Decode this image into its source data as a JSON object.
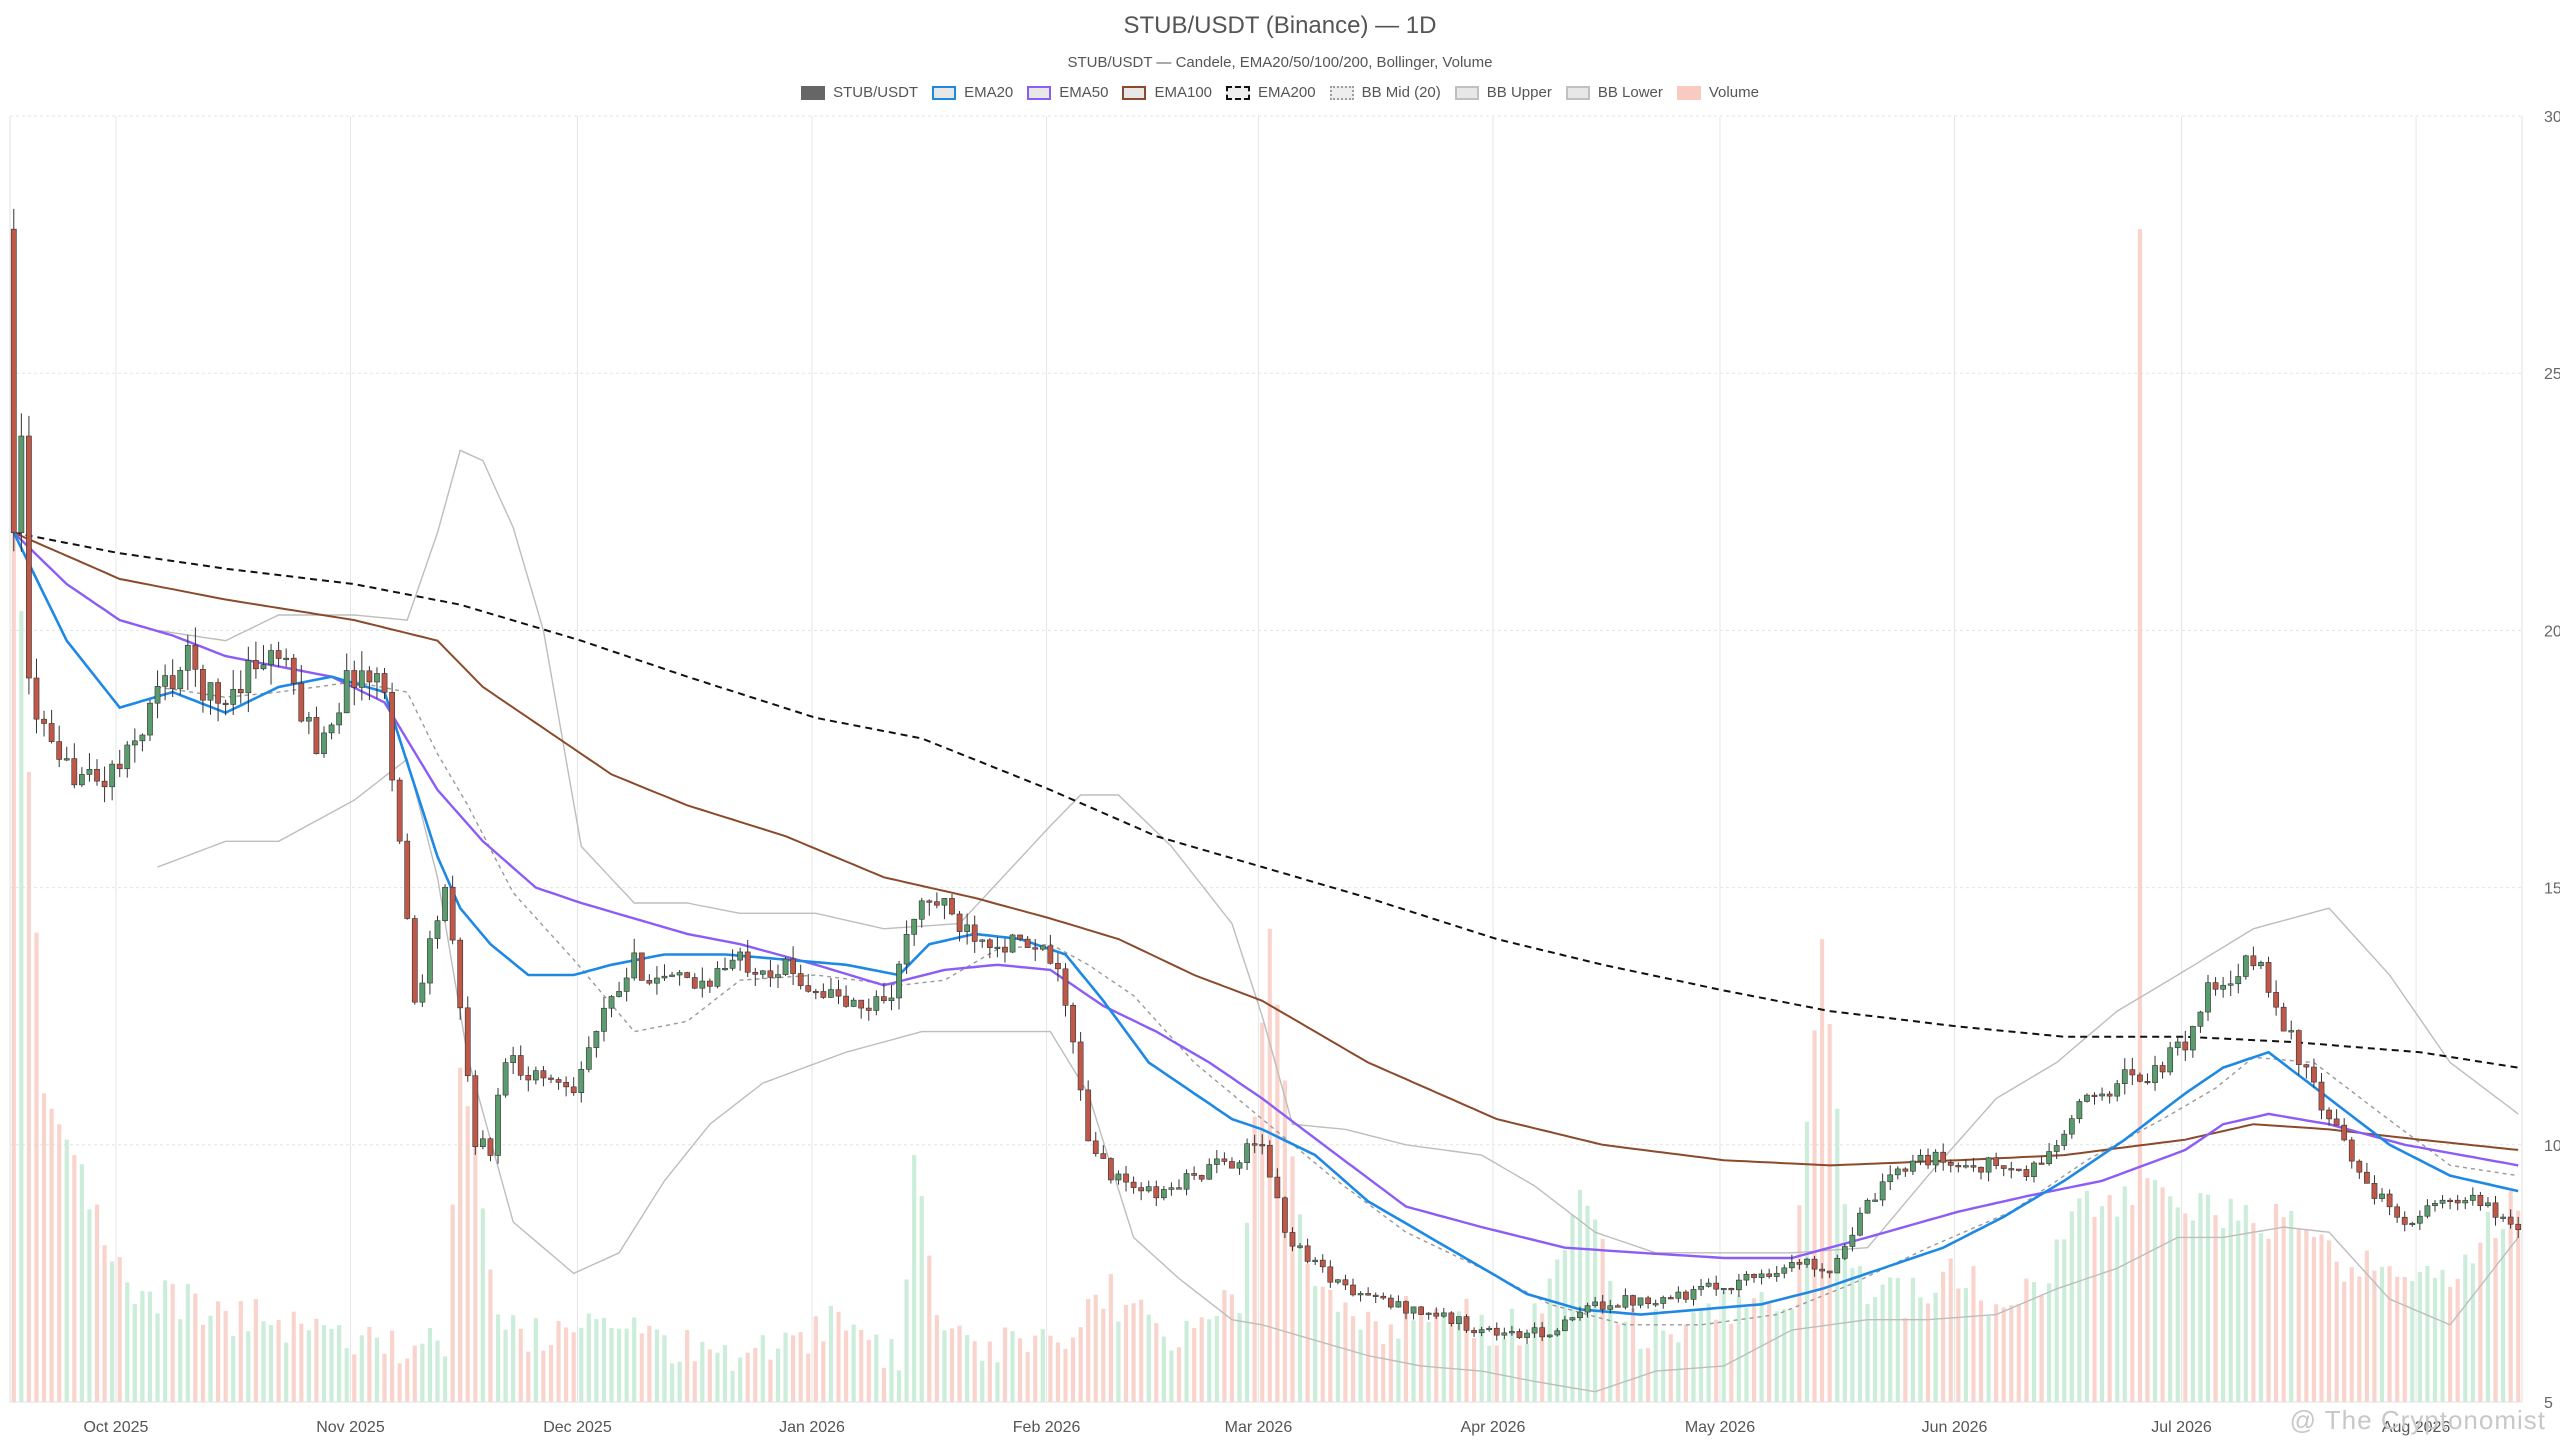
{
  "chart_data": {
    "type": "candlestick",
    "title": "STUB/USDT (Binance) — 1D",
    "subtitle": "STUB/USDT — Candele, EMA20/50/100/200, Bollinger, Volume",
    "watermark": "@ The Cryptonomist",
    "legend": [
      {
        "label": "STUB/USDT",
        "color": "#666666",
        "style": "solid-fill"
      },
      {
        "label": "EMA20",
        "color": "#1e88e5",
        "style": "line"
      },
      {
        "label": "EMA50",
        "color": "#8b5cf6",
        "style": "line"
      },
      {
        "label": "EMA100",
        "color": "#8b4a2b",
        "style": "line"
      },
      {
        "label": "EMA200",
        "color": "#111111",
        "style": "dashed"
      },
      {
        "label": "BB Mid (20)",
        "color": "#9e9e9e",
        "style": "dotted"
      },
      {
        "label": "BB Upper",
        "color": "#c0c0c0",
        "style": "line"
      },
      {
        "label": "BB Lower",
        "color": "#c0c0c0",
        "style": "line"
      },
      {
        "label": "Volume",
        "color": "#f6b8ab",
        "style": "fill"
      }
    ],
    "colors": {
      "up": "#5b9c6e",
      "down": "#c0584a",
      "vol_up": "#bfe8cf",
      "vol_down": "#f8c9c0"
    },
    "y_axis": {
      "position": "right",
      "min": 5,
      "max": 30,
      "ticks": [
        5,
        10,
        15,
        20,
        25,
        30
      ]
    },
    "x_axis": {
      "start": "2025-09-17",
      "end": "2026-08-14",
      "ticks": [
        {
          "label": "Oct 2025",
          "date": "2025-10-01"
        },
        {
          "label": "Nov 2025",
          "date": "2025-11-01"
        },
        {
          "label": "Dec 2025",
          "date": "2025-12-01"
        },
        {
          "label": "Jan 2026",
          "date": "2026-01-01"
        },
        {
          "label": "Feb 2026",
          "date": "2026-02-01"
        },
        {
          "label": "Mar 2026",
          "date": "2026-03-01"
        },
        {
          "label": "Apr 2026",
          "date": "2026-04-01"
        },
        {
          "label": "May 2026",
          "date": "2026-05-01"
        },
        {
          "label": "Jun 2026",
          "date": "2026-06-01"
        },
        {
          "label": "Jul 2026",
          "date": "2026-07-01"
        },
        {
          "label": "Aug 2026",
          "date": "2026-08-01"
        }
      ]
    },
    "grid": true,
    "price_anchors": {
      "dates": [
        "2025-09-17",
        "2025-09-19",
        "2025-09-21",
        "2025-09-23",
        "2025-09-25",
        "2025-09-28",
        "2025-10-02",
        "2025-10-06",
        "2025-10-10",
        "2025-10-14",
        "2025-10-18",
        "2025-10-22",
        "2025-10-27",
        "2025-11-01",
        "2025-11-05",
        "2025-11-09",
        "2025-11-13",
        "2025-11-17",
        "2025-11-19",
        "2025-11-21",
        "2025-11-23",
        "2025-11-26",
        "2025-11-30",
        "2025-12-04",
        "2025-12-08",
        "2025-12-12",
        "2025-12-16",
        "2025-12-22",
        "2025-12-28",
        "2026-01-03",
        "2026-01-07",
        "2026-01-11",
        "2026-01-14",
        "2026-01-16",
        "2026-01-20",
        "2026-01-25",
        "2026-01-29",
        "2026-02-01",
        "2026-02-03",
        "2026-02-06",
        "2026-02-10",
        "2026-02-15",
        "2026-02-20",
        "2026-02-25",
        "2026-03-01",
        "2026-03-04",
        "2026-03-08",
        "2026-03-12",
        "2026-03-18",
        "2026-03-24",
        "2026-03-30",
        "2026-04-04",
        "2026-04-09",
        "2026-04-14",
        "2026-04-20",
        "2026-04-26",
        "2026-05-02",
        "2026-05-08",
        "2026-05-12",
        "2026-05-15",
        "2026-05-20",
        "2026-05-26",
        "2026-06-01",
        "2026-06-06",
        "2026-06-10",
        "2026-06-14",
        "2026-06-18",
        "2026-06-23",
        "2026-06-27",
        "2026-07-01",
        "2026-07-04",
        "2026-07-07",
        "2026-07-10",
        "2026-07-14",
        "2026-07-19",
        "2026-07-24",
        "2026-07-29",
        "2026-08-03",
        "2026-08-08",
        "2026-08-14"
      ],
      "closes": [
        27.8,
        19.0,
        18.0,
        17.2,
        17.3,
        17.0,
        17.5,
        18.8,
        19.4,
        18.5,
        19.3,
        19.5,
        17.8,
        19.2,
        18.9,
        12.8,
        15.0,
        10.1,
        9.9,
        11.8,
        11.5,
        11.3,
        11.2,
        12.5,
        13.5,
        13.2,
        13.1,
        13.6,
        13.4,
        12.9,
        12.6,
        13.0,
        14.4,
        14.8,
        14.3,
        14.0,
        13.8,
        13.6,
        12.9,
        10.0,
        9.3,
        9.0,
        9.4,
        9.7,
        10.0,
        8.3,
        7.7,
        7.2,
        6.9,
        6.7,
        6.4,
        6.3,
        6.4,
        6.9,
        7.0,
        7.1,
        7.3,
        7.6,
        7.7,
        7.6,
        8.8,
        9.8,
        9.6,
        9.6,
        9.4,
        10.0,
        10.9,
        11.3,
        11.4,
        12.0,
        13.0,
        13.0,
        13.7,
        12.4,
        10.7,
        9.5,
        8.5,
        8.8,
        8.9,
        8.4
      ]
    },
    "volume_anchors": {
      "dates": [
        "2025-09-17",
        "2025-09-21",
        "2025-09-26",
        "2025-10-02",
        "2025-10-08",
        "2025-10-14",
        "2025-10-20",
        "2025-10-26",
        "2025-11-01",
        "2025-11-07",
        "2025-11-13",
        "2025-11-15",
        "2025-11-17",
        "2025-11-20",
        "2025-11-24",
        "2025-11-30",
        "2025-12-06",
        "2025-12-12",
        "2025-12-20",
        "2025-12-28",
        "2026-01-05",
        "2026-01-12",
        "2026-01-14",
        "2026-01-18",
        "2026-01-26",
        "2026-02-01",
        "2026-02-04",
        "2026-02-08",
        "2026-02-12",
        "2026-02-18",
        "2026-02-26",
        "2026-03-02",
        "2026-03-06",
        "2026-03-10",
        "2026-03-16",
        "2026-03-22",
        "2026-03-28",
        "2026-04-03",
        "2026-04-07",
        "2026-04-12",
        "2026-04-18",
        "2026-04-24",
        "2026-05-02",
        "2026-05-10",
        "2026-05-14",
        "2026-05-18",
        "2026-05-24",
        "2026-06-01",
        "2026-06-06",
        "2026-06-12",
        "2026-06-18",
        "2026-06-24",
        "2026-06-25",
        "2026-06-26",
        "2026-07-01",
        "2026-07-08",
        "2026-07-15",
        "2026-07-22",
        "2026-07-30",
        "2026-08-06",
        "2026-08-14"
      ],
      "values": [
        23.5,
        11.0,
        9.5,
        7.2,
        7.0,
        6.8,
        6.6,
        6.4,
        6.2,
        5.9,
        6.1,
        11.5,
        10.0,
        6.8,
        6.3,
        6.5,
        6.4,
        6.2,
        6.0,
        6.2,
        6.6,
        5.8,
        9.8,
        6.0,
        6.2,
        6.5,
        6.0,
        7.2,
        6.8,
        6.3,
        6.9,
        14.2,
        8.3,
        6.9,
        6.5,
        6.7,
        6.6,
        6.4,
        6.6,
        9.0,
        6.5,
        6.3,
        6.8,
        6.9,
        14.0,
        7.4,
        7.0,
        7.5,
        6.9,
        7.2,
        9.0,
        9.0,
        27.8,
        9.0,
        8.6,
        8.9,
        8.3,
        7.5,
        7.6,
        7.7,
        9.0
      ]
    },
    "ema20": {
      "dates": [
        "2025-09-17",
        "2025-09-24",
        "2025-10-01",
        "2025-10-08",
        "2025-10-15",
        "2025-10-22",
        "2025-10-29",
        "2025-11-05",
        "2025-11-12",
        "2025-11-15",
        "2025-11-19",
        "2025-11-24",
        "2025-11-30",
        "2025-12-05",
        "2025-12-12",
        "2025-12-20",
        "2025-12-28",
        "2026-01-05",
        "2026-01-12",
        "2026-01-16",
        "2026-01-22",
        "2026-01-28",
        "2026-02-03",
        "2026-02-08",
        "2026-02-14",
        "2026-02-20",
        "2026-02-25",
        "2026-03-01",
        "2026-03-08",
        "2026-03-15",
        "2026-03-22",
        "2026-03-29",
        "2026-04-05",
        "2026-04-12",
        "2026-04-20",
        "2026-04-28",
        "2026-05-06",
        "2026-05-14",
        "2026-05-22",
        "2026-05-30",
        "2026-06-07",
        "2026-06-15",
        "2026-06-23",
        "2026-07-01",
        "2026-07-06",
        "2026-07-12",
        "2026-07-20",
        "2026-07-28",
        "2026-08-05",
        "2026-08-14"
      ],
      "values": [
        21.9,
        19.8,
        18.5,
        18.8,
        18.4,
        18.9,
        19.1,
        18.8,
        15.6,
        14.6,
        13.9,
        13.3,
        13.3,
        13.5,
        13.7,
        13.7,
        13.6,
        13.5,
        13.3,
        13.9,
        14.1,
        14.0,
        13.7,
        12.8,
        11.6,
        11.0,
        10.5,
        10.3,
        9.8,
        8.9,
        8.3,
        7.7,
        7.1,
        6.8,
        6.7,
        6.8,
        6.9,
        7.2,
        7.6,
        8.0,
        8.6,
        9.3,
        10.1,
        11.0,
        11.5,
        11.8,
        10.9,
        10.0,
        9.4,
        9.1
      ]
    },
    "ema50": {
      "dates": [
        "2025-09-17",
        "2025-09-24",
        "2025-10-01",
        "2025-10-08",
        "2025-10-15",
        "2025-10-22",
        "2025-10-29",
        "2025-11-05",
        "2025-11-12",
        "2025-11-18",
        "2025-11-25",
        "2025-12-01",
        "2025-12-08",
        "2025-12-15",
        "2025-12-22",
        "2026-01-01",
        "2026-01-10",
        "2026-01-18",
        "2026-01-25",
        "2026-02-01",
        "2026-02-08",
        "2026-02-15",
        "2026-02-22",
        "2026-03-01",
        "2026-03-10",
        "2026-03-20",
        "2026-03-30",
        "2026-04-10",
        "2026-04-20",
        "2026-05-01",
        "2026-05-10",
        "2026-05-20",
        "2026-06-01",
        "2026-06-10",
        "2026-06-20",
        "2026-07-01",
        "2026-07-06",
        "2026-07-12",
        "2026-07-20",
        "2026-07-30",
        "2026-08-14"
      ],
      "values": [
        21.9,
        20.9,
        20.2,
        19.9,
        19.5,
        19.3,
        19.1,
        18.6,
        16.9,
        15.9,
        15.0,
        14.7,
        14.4,
        14.1,
        13.9,
        13.5,
        13.1,
        13.4,
        13.5,
        13.4,
        12.7,
        12.2,
        11.6,
        10.9,
        9.9,
        8.8,
        8.4,
        8.0,
        7.9,
        7.8,
        7.8,
        8.2,
        8.7,
        9.0,
        9.3,
        9.9,
        10.4,
        10.6,
        10.4,
        10.0,
        9.6
      ]
    },
    "ema100": {
      "dates": [
        "2025-09-17",
        "2025-10-01",
        "2025-10-15",
        "2025-11-01",
        "2025-11-12",
        "2025-11-18",
        "2025-11-26",
        "2025-12-05",
        "2025-12-15",
        "2025-12-28",
        "2026-01-10",
        "2026-01-22",
        "2026-02-01",
        "2026-02-10",
        "2026-02-20",
        "2026-03-01",
        "2026-03-15",
        "2026-04-01",
        "2026-04-15",
        "2026-05-01",
        "2026-05-15",
        "2026-06-01",
        "2026-06-15",
        "2026-07-01",
        "2026-07-10",
        "2026-07-20",
        "2026-08-01",
        "2026-08-14"
      ],
      "values": [
        21.9,
        21.0,
        20.6,
        20.2,
        19.8,
        18.9,
        18.1,
        17.2,
        16.6,
        16.0,
        15.2,
        14.8,
        14.4,
        14.0,
        13.3,
        12.8,
        11.6,
        10.5,
        10.0,
        9.7,
        9.6,
        9.7,
        9.8,
        10.1,
        10.4,
        10.3,
        10.1,
        9.9
      ]
    },
    "ema200": {
      "dates": [
        "2025-09-17",
        "2025-10-01",
        "2025-10-15",
        "2025-11-01",
        "2025-11-15",
        "2025-12-01",
        "2025-12-15",
        "2026-01-01",
        "2026-01-15",
        "2026-02-01",
        "2026-02-15",
        "2026-03-01",
        "2026-03-15",
        "2026-04-01",
        "2026-04-15",
        "2026-05-01",
        "2026-05-15",
        "2026-06-01",
        "2026-06-15",
        "2026-07-01",
        "2026-07-15",
        "2026-08-01",
        "2026-08-14"
      ],
      "values": [
        21.9,
        21.5,
        21.2,
        20.9,
        20.5,
        19.8,
        19.1,
        18.3,
        17.9,
        16.9,
        16.0,
        15.4,
        14.8,
        14.0,
        13.5,
        13.0,
        12.6,
        12.3,
        12.1,
        12.1,
        12.0,
        11.8,
        11.5
      ]
    },
    "bb_mid": {
      "dates": [
        "2025-10-06",
        "2025-10-15",
        "2025-10-22",
        "2025-11-01",
        "2025-11-08",
        "2025-11-12",
        "2025-11-16",
        "2025-11-22",
        "2025-11-30",
        "2025-12-08",
        "2025-12-15",
        "2025-12-22",
        "2026-01-01",
        "2026-01-12",
        "2026-01-18",
        "2026-01-25",
        "2026-02-01",
        "2026-02-06",
        "2026-02-12",
        "2026-02-20",
        "2026-03-01",
        "2026-03-10",
        "2026-03-20",
        "2026-03-30",
        "2026-04-08",
        "2026-04-18",
        "2026-04-28",
        "2026-05-08",
        "2026-05-18",
        "2026-05-28",
        "2026-06-08",
        "2026-06-18",
        "2026-06-28",
        "2026-07-05",
        "2026-07-10",
        "2026-07-18",
        "2026-07-26",
        "2026-08-05",
        "2026-08-14"
      ],
      "values": [
        18.9,
        18.7,
        18.8,
        19.0,
        18.8,
        17.6,
        16.6,
        14.9,
        13.6,
        12.2,
        12.4,
        13.2,
        13.3,
        13.1,
        13.2,
        13.8,
        13.9,
        13.5,
        12.9,
        11.6,
        10.5,
        9.4,
        8.3,
        7.6,
        6.9,
        6.5,
        6.5,
        6.7,
        7.3,
        8.0,
        8.7,
        9.7,
        10.5,
        11.1,
        11.7,
        11.6,
        10.7,
        9.6,
        9.4
      ]
    },
    "bb_upper": {
      "dates": [
        "2025-10-06",
        "2025-10-15",
        "2025-10-22",
        "2025-11-01",
        "2025-11-08",
        "2025-11-12",
        "2025-11-15",
        "2025-11-18",
        "2025-11-22",
        "2025-11-26",
        "2025-12-01",
        "2025-12-08",
        "2025-12-15",
        "2025-12-22",
        "2026-01-01",
        "2026-01-10",
        "2026-01-20",
        "2026-02-01",
        "2026-02-05",
        "2026-02-10",
        "2026-02-17",
        "2026-02-25",
        "2026-03-01",
        "2026-03-05",
        "2026-03-12",
        "2026-03-20",
        "2026-03-30",
        "2026-04-06",
        "2026-04-14",
        "2026-04-22",
        "2026-05-01",
        "2026-05-10",
        "2026-05-20",
        "2026-05-28",
        "2026-06-06",
        "2026-06-14",
        "2026-06-22",
        "2026-06-30",
        "2026-07-10",
        "2026-07-20",
        "2026-07-28",
        "2026-08-05",
        "2026-08-14"
      ],
      "values": [
        20.0,
        19.8,
        20.3,
        20.3,
        20.2,
        21.9,
        23.5,
        23.3,
        22.0,
        20.0,
        15.8,
        14.7,
        14.7,
        14.5,
        14.5,
        14.2,
        14.3,
        16.2,
        16.8,
        16.8,
        15.8,
        14.3,
        12.5,
        10.4,
        10.3,
        10.0,
        9.8,
        9.2,
        8.3,
        7.9,
        7.9,
        7.9,
        8.0,
        9.4,
        10.9,
        11.6,
        12.6,
        13.3,
        14.2,
        14.6,
        13.3,
        11.6,
        10.6
      ]
    },
    "bb_lower": {
      "dates": [
        "2025-10-06",
        "2025-10-15",
        "2025-10-22",
        "2025-11-01",
        "2025-11-08",
        "2025-11-12",
        "2025-11-16",
        "2025-11-22",
        "2025-11-30",
        "2025-12-06",
        "2025-12-12",
        "2025-12-18",
        "2025-12-25",
        "2026-01-05",
        "2026-01-15",
        "2026-01-25",
        "2026-02-01",
        "2026-02-06",
        "2026-02-12",
        "2026-02-18",
        "2026-02-25",
        "2026-03-01",
        "2026-03-08",
        "2026-03-15",
        "2026-03-22",
        "2026-03-30",
        "2026-04-06",
        "2026-04-14",
        "2026-04-22",
        "2026-05-01",
        "2026-05-10",
        "2026-05-20",
        "2026-05-28",
        "2026-06-06",
        "2026-06-14",
        "2026-06-22",
        "2026-06-30",
        "2026-07-06",
        "2026-07-14",
        "2026-07-20",
        "2026-07-28",
        "2026-08-05",
        "2026-08-14"
      ],
      "values": [
        15.4,
        15.9,
        15.9,
        16.7,
        17.5,
        15.2,
        11.7,
        8.5,
        7.5,
        7.9,
        9.3,
        10.4,
        11.2,
        11.8,
        12.2,
        12.2,
        12.2,
        11.0,
        8.2,
        7.4,
        6.6,
        6.5,
        6.2,
        5.9,
        5.7,
        5.6,
        5.4,
        5.2,
        5.6,
        5.7,
        6.4,
        6.6,
        6.6,
        6.7,
        7.2,
        7.6,
        8.2,
        8.2,
        8.4,
        8.3,
        7.0,
        6.5,
        8.2
      ]
    }
  }
}
